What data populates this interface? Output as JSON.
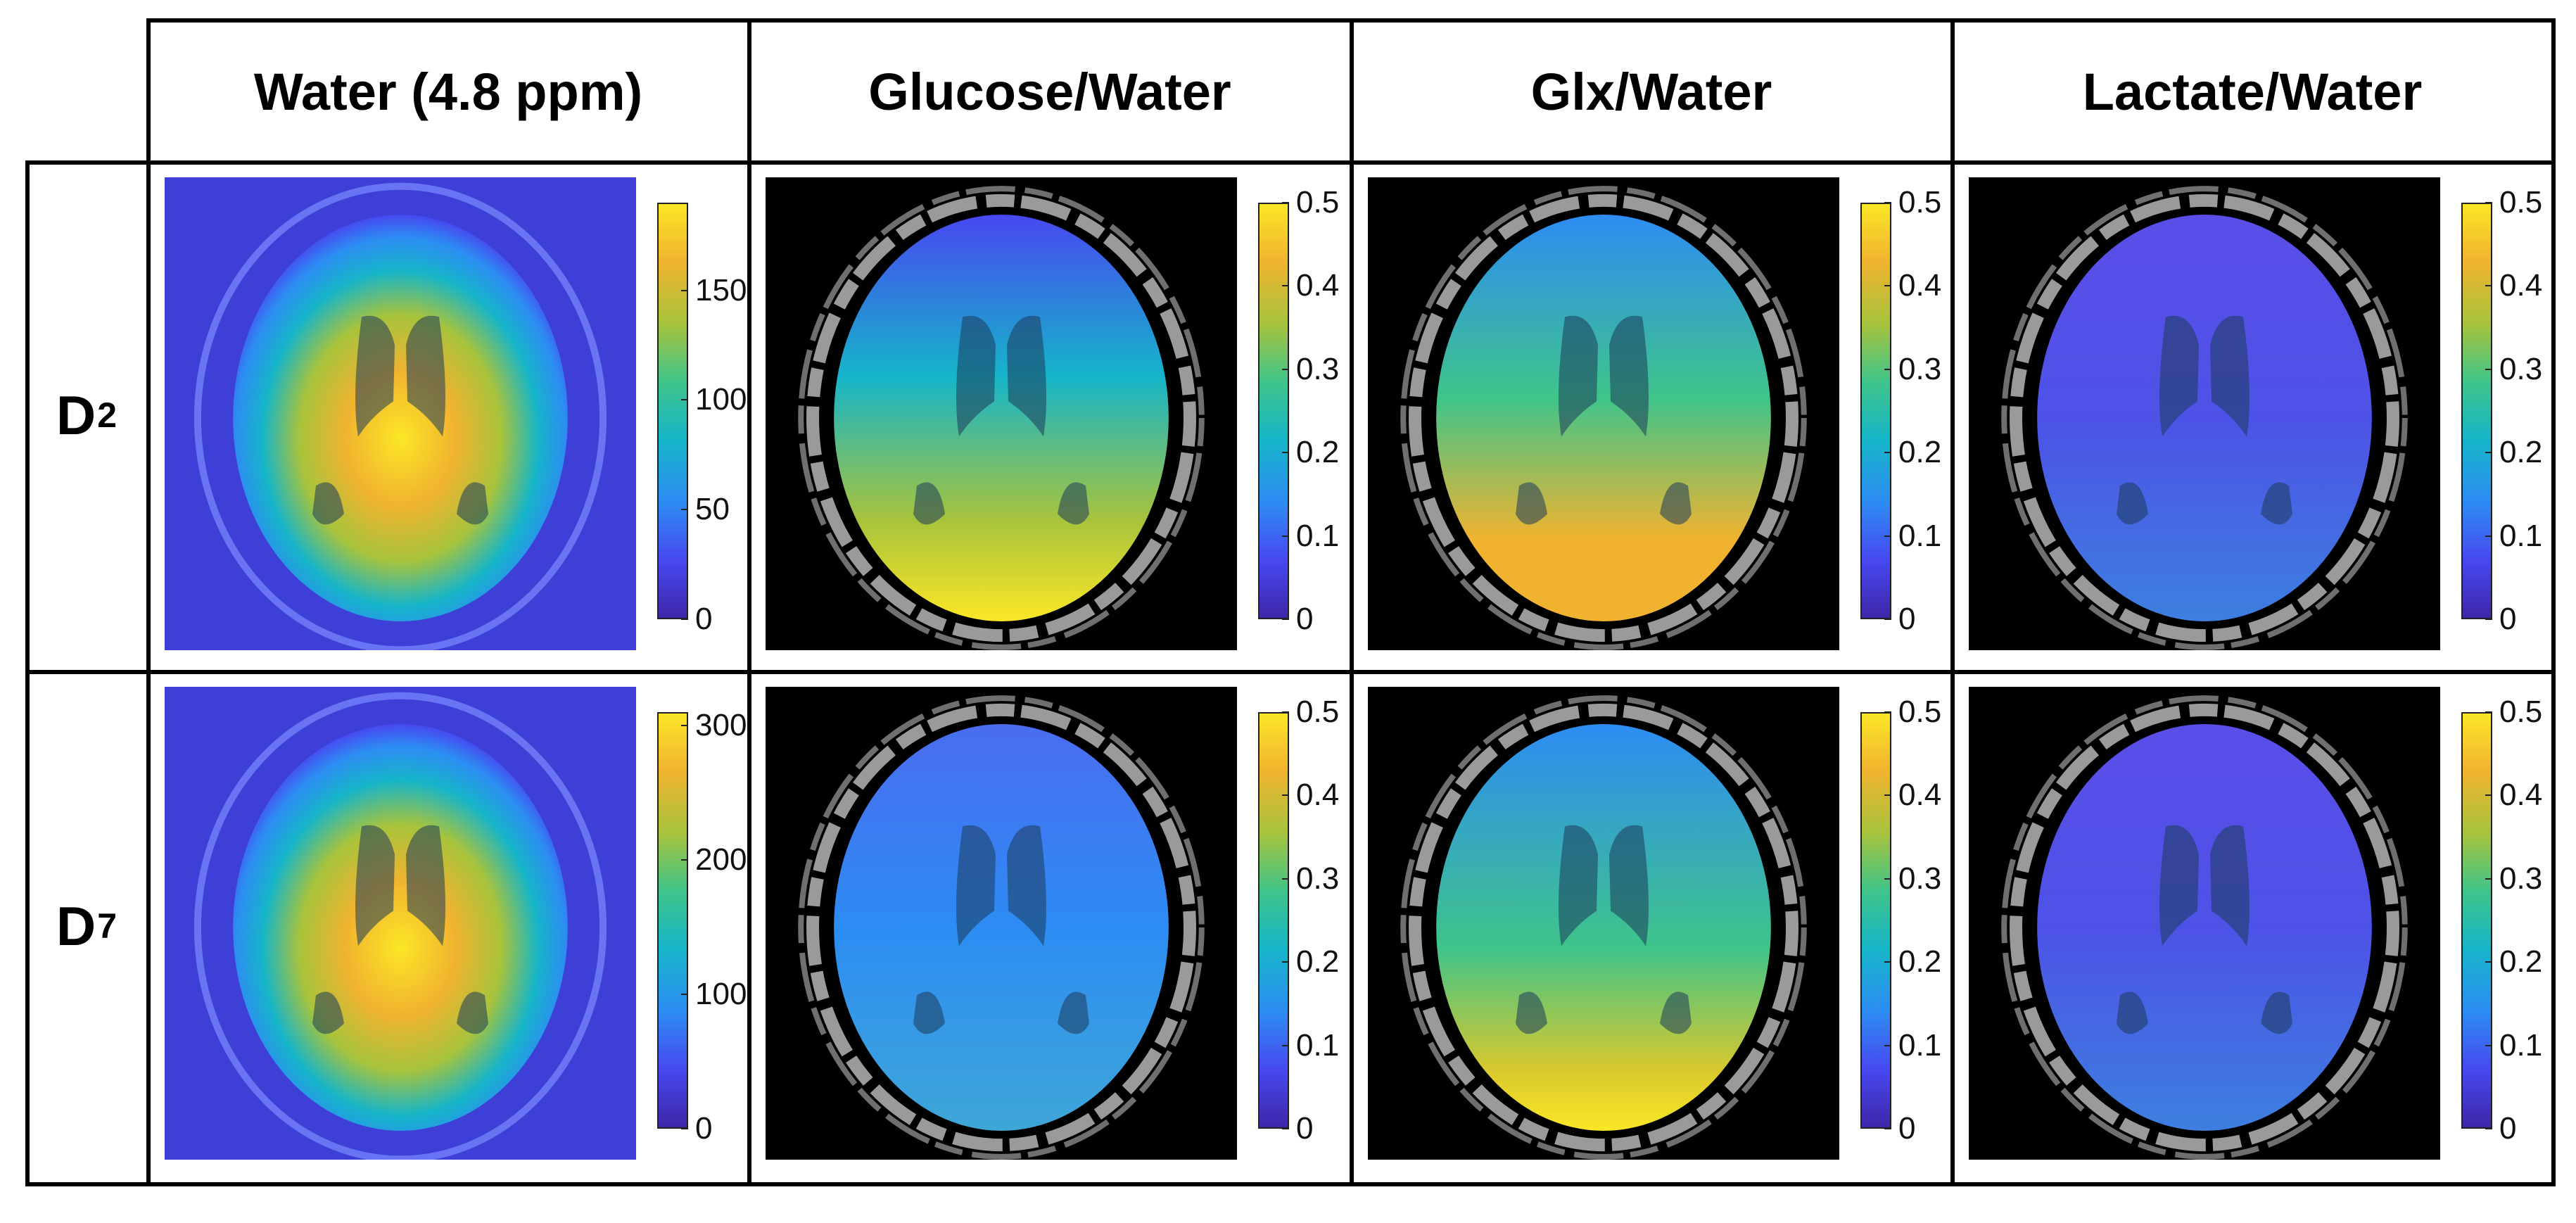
{
  "columns": [
    "Water (4.8 ppm)",
    "Glucose/Water",
    "Glx/Water",
    "Lactate/Water"
  ],
  "rows": [
    {
      "label": "D",
      "subscript": "2",
      "panels": [
        {
          "name": "d2-water",
          "bg": "water",
          "ticks": [
            "0",
            "50",
            "100",
            "150"
          ],
          "tick_values": [
            0,
            50,
            100,
            150
          ],
          "cmax": 190,
          "pattern": "water"
        },
        {
          "name": "d2-glucose",
          "bg": "black",
          "ticks": [
            "0",
            "0.1",
            "0.2",
            "0.3",
            "0.4",
            "0.5"
          ],
          "tick_values": [
            0,
            0.1,
            0.2,
            0.3,
            0.4,
            0.5
          ],
          "cmax": 0.5,
          "pattern": "glucose-d2"
        },
        {
          "name": "d2-glx",
          "bg": "black",
          "ticks": [
            "0",
            "0.1",
            "0.2",
            "0.3",
            "0.4",
            "0.5"
          ],
          "tick_values": [
            0,
            0.1,
            0.2,
            0.3,
            0.4,
            0.5
          ],
          "cmax": 0.5,
          "pattern": "glx-d2"
        },
        {
          "name": "d2-lactate",
          "bg": "black",
          "ticks": [
            "0",
            "0.1",
            "0.2",
            "0.3",
            "0.4",
            "0.5"
          ],
          "tick_values": [
            0,
            0.1,
            0.2,
            0.3,
            0.4,
            0.5
          ],
          "cmax": 0.5,
          "pattern": "lactate"
        }
      ]
    },
    {
      "label": "D",
      "subscript": "7",
      "panels": [
        {
          "name": "d7-water",
          "bg": "water",
          "ticks": [
            "0",
            "100",
            "200",
            "300"
          ],
          "tick_values": [
            0,
            100,
            200,
            300
          ],
          "cmax": 310,
          "pattern": "water"
        },
        {
          "name": "d7-glucose",
          "bg": "black",
          "ticks": [
            "0",
            "0.1",
            "0.2",
            "0.3",
            "0.4",
            "0.5"
          ],
          "tick_values": [
            0,
            0.1,
            0.2,
            0.3,
            0.4,
            0.5
          ],
          "cmax": 0.5,
          "pattern": "glucose-d7"
        },
        {
          "name": "d7-glx",
          "bg": "black",
          "ticks": [
            "0",
            "0.1",
            "0.2",
            "0.3",
            "0.4",
            "0.5"
          ],
          "tick_values": [
            0,
            0.1,
            0.2,
            0.3,
            0.4,
            0.5
          ],
          "cmax": 0.5,
          "pattern": "glx-d7"
        },
        {
          "name": "d7-lactate",
          "bg": "black",
          "ticks": [
            "0",
            "0.1",
            "0.2",
            "0.3",
            "0.4",
            "0.5"
          ],
          "tick_values": [
            0,
            0.1,
            0.2,
            0.3,
            0.4,
            0.5
          ],
          "cmax": 0.5,
          "pattern": "lactate"
        }
      ]
    }
  ],
  "colormap": [
    "#3e26a8",
    "#4748f0",
    "#2d8cf3",
    "#16b5c9",
    "#3fc48a",
    "#a7c33c",
    "#f1b32f",
    "#fbe726"
  ]
}
